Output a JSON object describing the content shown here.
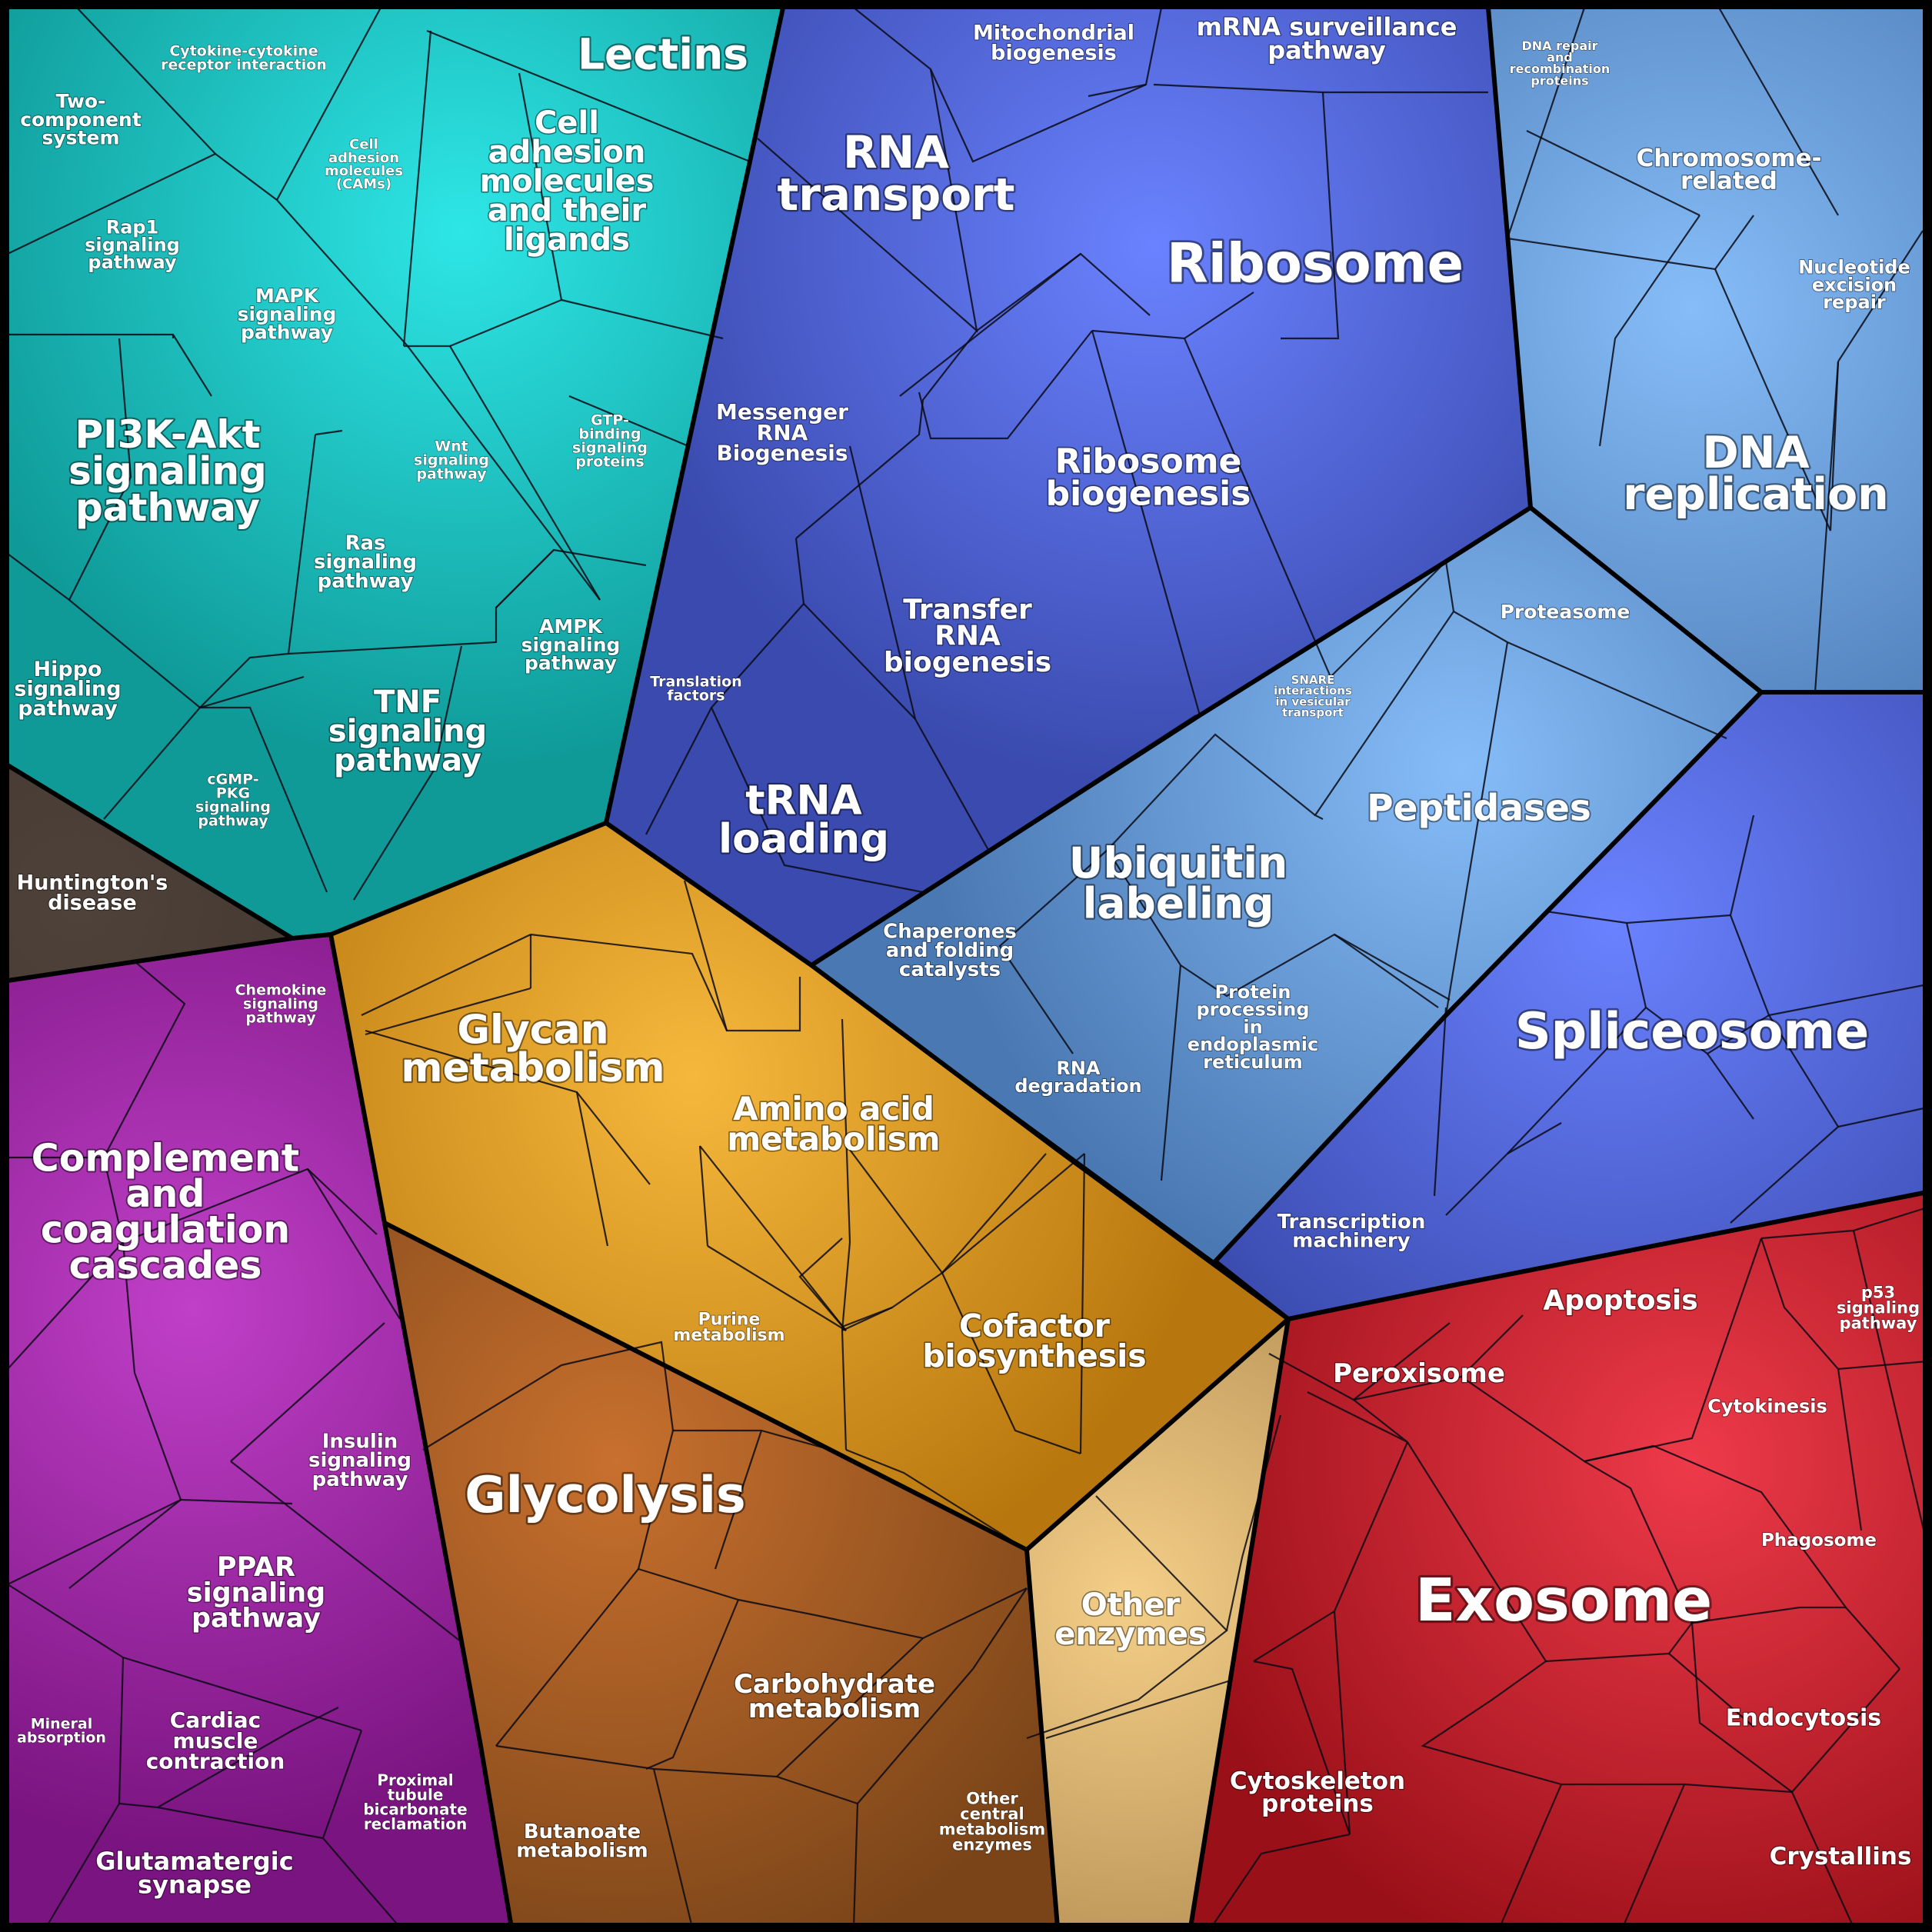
{
  "groups": [
    {
      "id": "teal",
      "color": "#0f9a98",
      "highlight": "#2ee6e6"
    },
    {
      "id": "blue",
      "color": "#3a4aae",
      "highlight": "#6a82ff"
    },
    {
      "id": "lightblue",
      "color": "#4a78b2",
      "highlight": "#86bdf8"
    },
    {
      "id": "orange",
      "color": "#b8770e",
      "highlight": "#f6b83c"
    },
    {
      "id": "brown",
      "color": "#7a4418",
      "highlight": "#c8702e"
    },
    {
      "id": "tan",
      "color": "#a07a42",
      "highlight": "#f4cf88"
    },
    {
      "id": "purple",
      "color": "#7a1480",
      "highlight": "#c040c8"
    },
    {
      "id": "red",
      "color": "#9a1018",
      "highlight": "#ee3a4a"
    },
    {
      "id": "dark",
      "color": "#3a2e28",
      "highlight": "#4e423a"
    }
  ],
  "labels": {
    "lectins": "Lectins",
    "cytokine_receptor": [
      "Cytokine-cytokine",
      "receptor interaction"
    ],
    "two_component": [
      "Two-",
      "component",
      "system"
    ],
    "cams": [
      "Cell",
      "adhesion",
      "molecules",
      "(CAMs)"
    ],
    "cell_adhesion": [
      "Cell",
      "adhesion",
      "molecules",
      "and their",
      "ligands"
    ],
    "rap1": [
      "Rap1",
      "signaling",
      "pathway"
    ],
    "mapk": [
      "MAPK",
      "signaling",
      "pathway"
    ],
    "wnt": [
      "Wnt",
      "signaling",
      "pathway"
    ],
    "gtp": [
      "GTP-",
      "binding",
      "signaling",
      "proteins"
    ],
    "pi3k": [
      "PI3K-Akt",
      "signaling",
      "pathway"
    ],
    "ras": [
      "Ras",
      "signaling",
      "pathway"
    ],
    "ampk": [
      "AMPK",
      "signaling",
      "pathway"
    ],
    "hippo": [
      "Hippo",
      "signaling",
      "pathway"
    ],
    "tnf": [
      "TNF",
      "signaling",
      "pathway"
    ],
    "cgmp": [
      "cGMP-",
      "PKG",
      "signaling",
      "pathway"
    ],
    "huntington": [
      "Huntington's",
      "disease"
    ],
    "mito": [
      "Mitochondrial",
      "biogenesis"
    ],
    "mrna_surv": [
      "mRNA surveillance",
      "pathway"
    ],
    "rna_transport": [
      "RNA",
      "transport"
    ],
    "ribosome": "Ribosome",
    "messenger": [
      "Messenger",
      "RNA",
      "Biogenesis"
    ],
    "ribosome_bio": [
      "Ribosome",
      "biogenesis"
    ],
    "transfer_rna": [
      "Transfer",
      "RNA",
      "biogenesis"
    ],
    "translation": [
      "Translation",
      "factors"
    ],
    "trna": [
      "tRNA",
      "loading"
    ],
    "dna_repair": [
      "DNA repair",
      "and",
      "recombination",
      "proteins"
    ],
    "chromosome": [
      "Chromosome-",
      "related"
    ],
    "nucleotide": [
      "Nucleotide",
      "excision",
      "repair"
    ],
    "dna_rep": [
      "DNA",
      "replication"
    ],
    "proteasome": "Proteasome",
    "snare": [
      "SNARE",
      "interactions",
      "in vesicular",
      "transport"
    ],
    "peptidases": "Peptidases",
    "ubiquitin": [
      "Ubiquitin",
      "labeling"
    ],
    "chaperones": [
      "Chaperones",
      "and folding",
      "catalysts"
    ],
    "rna_deg": [
      "RNA",
      "degradation"
    ],
    "protein_er": [
      "Protein",
      "processing",
      "in",
      "endoplasmic",
      "reticulum"
    ],
    "spliceosome": "Spliceosome",
    "transcription": [
      "Transcription",
      "machinery"
    ],
    "chemokine": [
      "Chemokine",
      "signaling",
      "pathway"
    ],
    "complement": [
      "Complement",
      "and",
      "coagulation",
      "cascades"
    ],
    "insulin": [
      "Insulin",
      "signaling",
      "pathway"
    ],
    "ppar": [
      "PPAR",
      "signaling",
      "pathway"
    ],
    "mineral": [
      "Mineral",
      "absorption"
    ],
    "cardiac": [
      "Cardiac",
      "muscle",
      "contraction"
    ],
    "proximal": [
      "Proximal",
      "tubule",
      "bicarbonate",
      "reclamation"
    ],
    "glutamatergic": [
      "Glutamatergic",
      "synapse"
    ],
    "glycan": [
      "Glycan",
      "metabolism"
    ],
    "amino": [
      "Amino acid",
      "metabolism"
    ],
    "purine": [
      "Purine",
      "metabolism"
    ],
    "cofactor": [
      "Cofactor",
      "biosynthesis"
    ],
    "glycolysis": "Glycolysis",
    "carbohydrate": [
      "Carbohydrate",
      "metabolism"
    ],
    "butanoate": [
      "Butanoate",
      "metabolism"
    ],
    "other_central": [
      "Other",
      "central",
      "metabolism",
      "enzymes"
    ],
    "other_enzymes": [
      "Other",
      "enzymes"
    ],
    "apoptosis": "Apoptosis",
    "p53": [
      "p53",
      "signaling",
      "pathway"
    ],
    "peroxisome": "Peroxisome",
    "cytokinesis": "Cytokinesis",
    "phagosome": "Phagosome",
    "exosome": "Exosome",
    "endocytosis": "Endocytosis",
    "cytoskeleton": [
      "Cytoskeleton",
      "proteins"
    ],
    "crystallins": "Crystallins"
  }
}
